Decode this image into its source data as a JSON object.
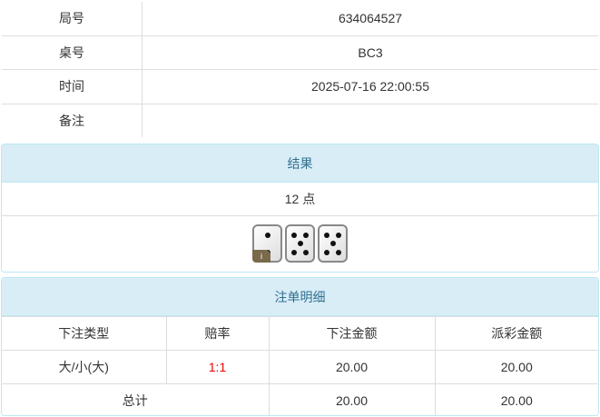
{
  "info": [
    {
      "label": "局号",
      "value": "634064527"
    },
    {
      "label": "桌号",
      "value": "BC3"
    },
    {
      "label": "时间",
      "value": "2025-07-16 22:00:55"
    },
    {
      "label": "备注",
      "value": ""
    }
  ],
  "result": {
    "title": "结果",
    "points": "12 点",
    "dice": [
      2,
      5,
      5
    ],
    "badge": "i"
  },
  "bets": {
    "title": "注单明细",
    "headers": [
      "下注类型",
      "赔率",
      "下注金额",
      "派彩金额"
    ],
    "rows": [
      {
        "type": "大/小(大)",
        "odds": "1:1",
        "amount": "20.00",
        "payout": "20.00"
      }
    ],
    "total": {
      "label": "总计",
      "amount": "20.00",
      "payout": "20.00"
    },
    "odds_color": "#ee0000"
  }
}
